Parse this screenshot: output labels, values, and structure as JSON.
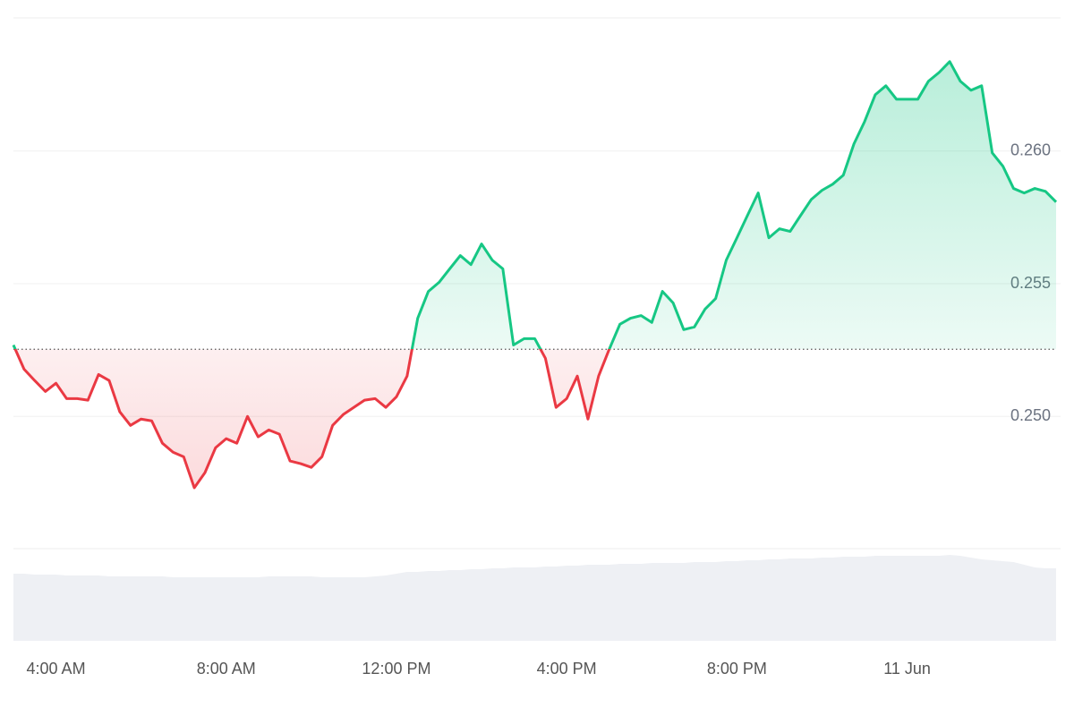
{
  "chart_data": {
    "type": "line",
    "categories": [
      null,
      null,
      null,
      null,
      "4:00 AM",
      null,
      null,
      null,
      null,
      null,
      null,
      null,
      null,
      null,
      null,
      null,
      null,
      null,
      null,
      null,
      "8:00 AM",
      null,
      null,
      null,
      null,
      null,
      null,
      null,
      null,
      null,
      null,
      null,
      null,
      null,
      null,
      null,
      "12:00 PM",
      null,
      null,
      null,
      null,
      null,
      null,
      null,
      null,
      null,
      null,
      null,
      null,
      null,
      null,
      null,
      "4:00 PM",
      null,
      null,
      null,
      null,
      null,
      null,
      null,
      null,
      null,
      null,
      null,
      null,
      null,
      null,
      null,
      "8:00 PM",
      null,
      null,
      null,
      null,
      null,
      null,
      null,
      null,
      null,
      null,
      null,
      null,
      null,
      null,
      null,
      "11 Jun",
      null,
      null,
      null,
      null,
      null,
      null,
      null,
      null,
      null,
      null,
      null,
      null,
      null,
      null
    ],
    "series": [
      {
        "values": [
          0.25269,
          0.25178,
          0.25135,
          0.25094,
          0.25125,
          0.25067,
          0.25067,
          0.25061,
          0.25158,
          0.25135,
          0.25017,
          0.24966,
          0.2499,
          0.24983,
          0.24899,
          0.24865,
          0.24848,
          0.24731,
          0.24788,
          0.24882,
          0.24916,
          0.24899,
          0.25,
          0.24923,
          0.24949,
          0.24933,
          0.24832,
          0.24822,
          0.24808,
          0.24848,
          0.24966,
          0.25007,
          0.25034,
          0.25061,
          0.25067,
          0.25034,
          0.25074,
          0.25152,
          0.2537,
          0.25471,
          0.25505,
          0.25556,
          0.25606,
          0.25572,
          0.2565,
          0.25589,
          0.25556,
          0.25269,
          0.25293,
          0.25293,
          0.25219,
          0.25034,
          0.25067,
          0.25152,
          0.2499,
          0.25152,
          0.25253,
          0.25347,
          0.2537,
          0.2538,
          0.25354,
          0.25471,
          0.25428,
          0.25327,
          0.25337,
          0.25404,
          0.25444,
          0.25589,
          0.25673,
          0.25758,
          0.25842,
          0.25673,
          0.25707,
          0.25697,
          0.25758,
          0.25818,
          0.25852,
          0.25875,
          0.25909,
          0.26027,
          0.26111,
          0.26212,
          0.26246,
          0.26195,
          0.26195,
          0.26195,
          0.26263,
          0.26296,
          0.26337,
          0.26263,
          0.26229,
          0.26246,
          0.25993,
          0.25943,
          0.25859,
          0.25842,
          0.25859,
          0.25848,
          0.25808
        ],
        "up_color": "#16c784",
        "down_color": "#ea3943"
      }
    ],
    "baseline": 0.25253,
    "volume": [
      75,
      75,
      74,
      74,
      74,
      73,
      73,
      73,
      73,
      72,
      72,
      72,
      72,
      72,
      72,
      71,
      71,
      71,
      71,
      71,
      71,
      71,
      71,
      71,
      72,
      72,
      72,
      72,
      72,
      71,
      71,
      71,
      71,
      71,
      72,
      73,
      75,
      77,
      77,
      78,
      78,
      79,
      79,
      80,
      80,
      81,
      81,
      82,
      82,
      82,
      83,
      83,
      84,
      84,
      85,
      85,
      85,
      86,
      86,
      86,
      87,
      87,
      87,
      87,
      88,
      88,
      88,
      89,
      89,
      90,
      90,
      91,
      91,
      92,
      92,
      92,
      93,
      93,
      94,
      94,
      94,
      95,
      95,
      95,
      95,
      95,
      95,
      95,
      96,
      95,
      93,
      91,
      90,
      89,
      88,
      85,
      82,
      81,
      81
    ],
    "volume_lim": [
      0,
      100
    ],
    "volume_color": "#eef0f4",
    "ylim": [
      0.245,
      0.265
    ],
    "yticks": [
      {
        "value": 0.25,
        "label": "0.250"
      },
      0.255,
      {
        "value": 0.26,
        "label": "0.260"
      }
    ],
    "grid": true
  }
}
